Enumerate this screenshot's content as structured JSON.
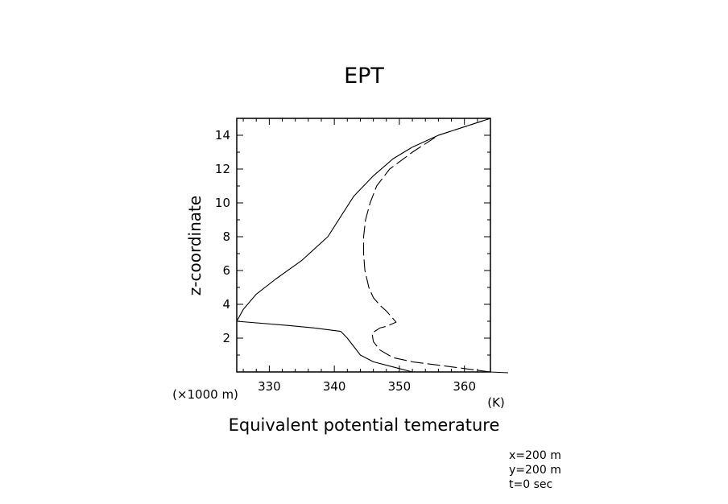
{
  "chart_data": {
    "type": "line",
    "title": "EPT",
    "xlabel": "Equivalent potential temerature",
    "x_unit": "(K)",
    "ylabel": "z-coordinate",
    "y_unit": "(×1000 m)",
    "xlim": [
      325,
      364
    ],
    "ylim": [
      0,
      15
    ],
    "x_ticks": [
      330,
      340,
      350,
      360
    ],
    "y_ticks": [
      2,
      4,
      6,
      8,
      10,
      12,
      14
    ],
    "grid": false,
    "series": [
      {
        "style": "solid",
        "x": [
          352,
          349,
          346,
          344,
          343,
          342,
          341,
          337,
          333,
          325,
          326,
          328,
          331,
          335,
          339,
          341,
          343,
          346,
          349,
          352,
          356,
          360,
          364
        ],
        "y": [
          0,
          0.3,
          0.6,
          1.0,
          1.5,
          2.0,
          2.4,
          2.6,
          2.75,
          3.0,
          3.7,
          4.6,
          5.5,
          6.6,
          8.0,
          9.2,
          10.4,
          11.6,
          12.6,
          13.3,
          14.0,
          14.5,
          15.0
        ]
      },
      {
        "style": "dashed",
        "x": [
          364,
          357,
          352,
          349,
          347,
          346,
          345.8,
          347,
          348,
          349.5,
          348,
          347,
          346,
          345.3,
          344.7,
          344.5,
          344.5,
          344.8,
          345.5,
          346.5,
          348.5,
          352,
          356,
          360,
          364
        ],
        "y": [
          0,
          0.35,
          0.6,
          0.85,
          1.3,
          1.8,
          2.3,
          2.6,
          2.7,
          2.95,
          3.6,
          3.95,
          4.4,
          5.0,
          6.0,
          7.0,
          8.0,
          9.0,
          10.0,
          11.0,
          12.0,
          13.0,
          14.0,
          14.5,
          15.0
        ]
      }
    ]
  },
  "footer": {
    "line1": "x=200 m",
    "line2": "y=200 m",
    "line3": "t=0 sec"
  }
}
